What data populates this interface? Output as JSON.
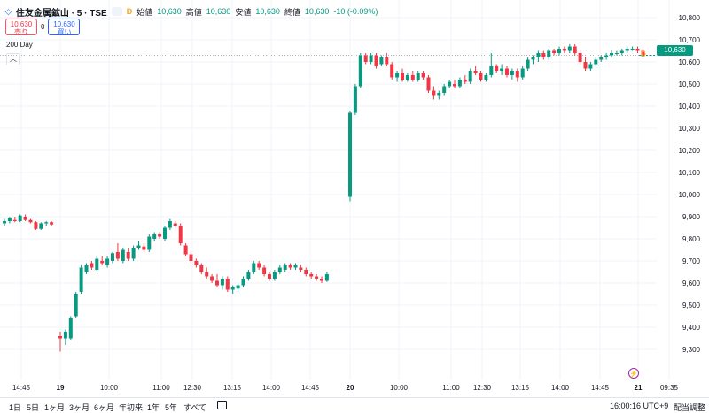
{
  "header": {
    "symbol": "住友金属鉱山 · 5 · TSE",
    "flag": "D",
    "open_label": "始値",
    "open_value": "10,630",
    "high_label": "高値",
    "high_value": "10,630",
    "low_label": "安値",
    "low_value": "10,630",
    "close_label": "終値",
    "close_value": "10,630",
    "change": "-10 (-0.09%)"
  },
  "trade": {
    "sell_price": "10,630",
    "sell_label": "売り",
    "spread": "0",
    "buy_price": "10,630",
    "buy_label": "買い"
  },
  "indicator": {
    "label": "200 Day"
  },
  "collapse_icon": "chevron-up-icon",
  "last_price_label": "10,630",
  "dividend_badge": "D",
  "bottom": {
    "ranges": [
      "1日",
      "5日",
      "1ヶ月",
      "3ヶ月",
      "6ヶ月",
      "年初来",
      "1年",
      "5年",
      "すべて"
    ],
    "clock": "16:00:16 UTC+9",
    "adjust": "配当調整"
  },
  "colors": {
    "up": "#089981",
    "down": "#f23645",
    "grid": "#f0f3fa",
    "ma": "#b2b5be",
    "last_price": "#089981"
  },
  "chart_data": {
    "type": "candlestick",
    "y_axis": {
      "min": 9200,
      "max": 10760,
      "ticks": [
        10800,
        10700,
        10600,
        10500,
        10400,
        10300,
        10200,
        10100,
        10000,
        9900,
        9800,
        9700,
        9600,
        9500,
        9400,
        9300
      ],
      "tick_labels": [
        "10,800",
        "10,700",
        "10,600",
        "10,500",
        "10,400",
        "10,300",
        "10,200",
        "10,100",
        "10,000",
        "9,900",
        "9,800",
        "9,700",
        "9,600",
        "9,500",
        "9,400",
        "9,300"
      ]
    },
    "x_axis": {
      "tick_labels": [
        "14:45",
        "19",
        "10:00",
        "11:00",
        "12:30",
        "13:15",
        "14:00",
        "14:45",
        "20",
        "10:00",
        "11:00",
        "12:30",
        "13:15",
        "14:00",
        "14:45",
        "21",
        "09:35"
      ]
    },
    "grid": true,
    "ma_200_level": 10630,
    "last_price": 10630,
    "candles": [
      {
        "o": 9870,
        "h": 9890,
        "l": 9860,
        "c": 9880
      },
      {
        "o": 9880,
        "h": 9900,
        "l": 9870,
        "c": 9895
      },
      {
        "o": 9885,
        "h": 9900,
        "l": 9875,
        "c": 9880
      },
      {
        "o": 9880,
        "h": 9910,
        "l": 9875,
        "c": 9905
      },
      {
        "o": 9900,
        "h": 9910,
        "l": 9880,
        "c": 9885
      },
      {
        "o": 9885,
        "h": 9890,
        "l": 9870,
        "c": 9875
      },
      {
        "o": 9875,
        "h": 9880,
        "l": 9840,
        "c": 9845
      },
      {
        "o": 9845,
        "h": 9875,
        "l": 9840,
        "c": 9870
      },
      {
        "o": 9870,
        "h": 9880,
        "l": 9860,
        "c": 9875
      },
      {
        "o": 9875,
        "h": 9880,
        "l": 9860,
        "c": 9865
      },
      {
        "o": 9360,
        "h": 9380,
        "l": 9290,
        "c": 9350
      },
      {
        "o": 9350,
        "h": 9390,
        "l": 9320,
        "c": 9380
      },
      {
        "o": 9350,
        "h": 9450,
        "l": 9340,
        "c": 9440
      },
      {
        "o": 9450,
        "h": 9560,
        "l": 9440,
        "c": 9550
      },
      {
        "o": 9560,
        "h": 9680,
        "l": 9550,
        "c": 9670
      },
      {
        "o": 9650,
        "h": 9690,
        "l": 9640,
        "c": 9680
      },
      {
        "o": 9690,
        "h": 9700,
        "l": 9660,
        "c": 9670
      },
      {
        "o": 9660,
        "h": 9720,
        "l": 9655,
        "c": 9710
      },
      {
        "o": 9700,
        "h": 9720,
        "l": 9680,
        "c": 9690
      },
      {
        "o": 9680,
        "h": 9720,
        "l": 9670,
        "c": 9710
      },
      {
        "o": 9700,
        "h": 9740,
        "l": 9690,
        "c": 9735
      },
      {
        "o": 9740,
        "h": 9780,
        "l": 9700,
        "c": 9710
      },
      {
        "o": 9700,
        "h": 9760,
        "l": 9690,
        "c": 9750
      },
      {
        "o": 9740,
        "h": 9760,
        "l": 9700,
        "c": 9710
      },
      {
        "o": 9710,
        "h": 9770,
        "l": 9700,
        "c": 9760
      },
      {
        "o": 9760,
        "h": 9790,
        "l": 9750,
        "c": 9770
      },
      {
        "o": 9765,
        "h": 9780,
        "l": 9740,
        "c": 9750
      },
      {
        "o": 9750,
        "h": 9820,
        "l": 9740,
        "c": 9810
      },
      {
        "o": 9800,
        "h": 9830,
        "l": 9790,
        "c": 9820
      },
      {
        "o": 9820,
        "h": 9830,
        "l": 9800,
        "c": 9810
      },
      {
        "o": 9800,
        "h": 9860,
        "l": 9790,
        "c": 9850
      },
      {
        "o": 9850,
        "h": 9890,
        "l": 9840,
        "c": 9880
      },
      {
        "o": 9870,
        "h": 9880,
        "l": 9850,
        "c": 9860
      },
      {
        "o": 9860,
        "h": 9870,
        "l": 9770,
        "c": 9780
      },
      {
        "o": 9770,
        "h": 9780,
        "l": 9720,
        "c": 9730
      },
      {
        "o": 9730,
        "h": 9740,
        "l": 9690,
        "c": 9700
      },
      {
        "o": 9700,
        "h": 9710,
        "l": 9670,
        "c": 9680
      },
      {
        "o": 9680,
        "h": 9690,
        "l": 9640,
        "c": 9650
      },
      {
        "o": 9650,
        "h": 9670,
        "l": 9620,
        "c": 9630
      },
      {
        "o": 9630,
        "h": 9640,
        "l": 9600,
        "c": 9610
      },
      {
        "o": 9610,
        "h": 9640,
        "l": 9580,
        "c": 9590
      },
      {
        "o": 9590,
        "h": 9630,
        "l": 9570,
        "c": 9620
      },
      {
        "o": 9620,
        "h": 9630,
        "l": 9560,
        "c": 9570
      },
      {
        "o": 9570,
        "h": 9590,
        "l": 9550,
        "c": 9580
      },
      {
        "o": 9575,
        "h": 9600,
        "l": 9560,
        "c": 9590
      },
      {
        "o": 9590,
        "h": 9630,
        "l": 9580,
        "c": 9620
      },
      {
        "o": 9620,
        "h": 9660,
        "l": 9610,
        "c": 9650
      },
      {
        "o": 9650,
        "h": 9700,
        "l": 9640,
        "c": 9690
      },
      {
        "o": 9690,
        "h": 9700,
        "l": 9660,
        "c": 9670
      },
      {
        "o": 9670,
        "h": 9680,
        "l": 9630,
        "c": 9640
      },
      {
        "o": 9640,
        "h": 9650,
        "l": 9610,
        "c": 9620
      },
      {
        "o": 9620,
        "h": 9660,
        "l": 9610,
        "c": 9650
      },
      {
        "o": 9650,
        "h": 9680,
        "l": 9640,
        "c": 9670
      },
      {
        "o": 9660,
        "h": 9690,
        "l": 9650,
        "c": 9680
      },
      {
        "o": 9680,
        "h": 9690,
        "l": 9660,
        "c": 9670
      },
      {
        "o": 9670,
        "h": 9690,
        "l": 9660,
        "c": 9680
      },
      {
        "o": 9670,
        "h": 9680,
        "l": 9650,
        "c": 9660
      },
      {
        "o": 9660,
        "h": 9670,
        "l": 9630,
        "c": 9640
      },
      {
        "o": 9640,
        "h": 9650,
        "l": 9620,
        "c": 9630
      },
      {
        "o": 9630,
        "h": 9640,
        "l": 9610,
        "c": 9620
      },
      {
        "o": 9620,
        "h": 9630,
        "l": 9600,
        "c": 9610
      },
      {
        "o": 9610,
        "h": 9650,
        "l": 9605,
        "c": 9640
      },
      {
        "o": 9990,
        "h": 10380,
        "l": 9970,
        "c": 10370
      },
      {
        "o": 10370,
        "h": 10500,
        "l": 10360,
        "c": 10490
      },
      {
        "o": 10490,
        "h": 10640,
        "l": 10480,
        "c": 10630
      },
      {
        "o": 10630,
        "h": 10640,
        "l": 10590,
        "c": 10600
      },
      {
        "o": 10600,
        "h": 10640,
        "l": 10590,
        "c": 10630
      },
      {
        "o": 10630,
        "h": 10640,
        "l": 10570,
        "c": 10580
      },
      {
        "o": 10590,
        "h": 10630,
        "l": 10580,
        "c": 10620
      },
      {
        "o": 10620,
        "h": 10640,
        "l": 10580,
        "c": 10590
      },
      {
        "o": 10590,
        "h": 10600,
        "l": 10520,
        "c": 10530
      },
      {
        "o": 10530,
        "h": 10560,
        "l": 10510,
        "c": 10550
      },
      {
        "o": 10550,
        "h": 10570,
        "l": 10510,
        "c": 10520
      },
      {
        "o": 10520,
        "h": 10550,
        "l": 10510,
        "c": 10540
      },
      {
        "o": 10540,
        "h": 10560,
        "l": 10510,
        "c": 10520
      },
      {
        "o": 10520,
        "h": 10560,
        "l": 10510,
        "c": 10550
      },
      {
        "o": 10550,
        "h": 10560,
        "l": 10520,
        "c": 10530
      },
      {
        "o": 10530,
        "h": 10540,
        "l": 10460,
        "c": 10470
      },
      {
        "o": 10470,
        "h": 10490,
        "l": 10430,
        "c": 10450
      },
      {
        "o": 10450,
        "h": 10470,
        "l": 10430,
        "c": 10460
      },
      {
        "o": 10460,
        "h": 10500,
        "l": 10450,
        "c": 10490
      },
      {
        "o": 10490,
        "h": 10520,
        "l": 10480,
        "c": 10510
      },
      {
        "o": 10500,
        "h": 10520,
        "l": 10480,
        "c": 10490
      },
      {
        "o": 10490,
        "h": 10530,
        "l": 10480,
        "c": 10520
      },
      {
        "o": 10520,
        "h": 10540,
        "l": 10500,
        "c": 10510
      },
      {
        "o": 10510,
        "h": 10570,
        "l": 10500,
        "c": 10560
      },
      {
        "o": 10560,
        "h": 10580,
        "l": 10540,
        "c": 10550
      },
      {
        "o": 10550,
        "h": 10560,
        "l": 10510,
        "c": 10520
      },
      {
        "o": 10520,
        "h": 10550,
        "l": 10510,
        "c": 10540
      },
      {
        "o": 10540,
        "h": 10640,
        "l": 10530,
        "c": 10580
      },
      {
        "o": 10580,
        "h": 10590,
        "l": 10550,
        "c": 10560
      },
      {
        "o": 10560,
        "h": 10590,
        "l": 10540,
        "c": 10570
      },
      {
        "o": 10570,
        "h": 10580,
        "l": 10530,
        "c": 10540
      },
      {
        "o": 10540,
        "h": 10570,
        "l": 10520,
        "c": 10560
      },
      {
        "o": 10560,
        "h": 10570,
        "l": 10510,
        "c": 10530
      },
      {
        "o": 10530,
        "h": 10580,
        "l": 10520,
        "c": 10570
      },
      {
        "o": 10570,
        "h": 10620,
        "l": 10560,
        "c": 10610
      },
      {
        "o": 10610,
        "h": 10630,
        "l": 10590,
        "c": 10620
      },
      {
        "o": 10620,
        "h": 10650,
        "l": 10600,
        "c": 10640
      },
      {
        "o": 10640,
        "h": 10650,
        "l": 10610,
        "c": 10620
      },
      {
        "o": 10620,
        "h": 10660,
        "l": 10610,
        "c": 10650
      },
      {
        "o": 10650,
        "h": 10660,
        "l": 10630,
        "c": 10640
      },
      {
        "o": 10640,
        "h": 10670,
        "l": 10630,
        "c": 10660
      },
      {
        "o": 10660,
        "h": 10670,
        "l": 10640,
        "c": 10650
      },
      {
        "o": 10650,
        "h": 10680,
        "l": 10640,
        "c": 10670
      },
      {
        "o": 10670,
        "h": 10680,
        "l": 10630,
        "c": 10640
      },
      {
        "o": 10640,
        "h": 10650,
        "l": 10590,
        "c": 10600
      },
      {
        "o": 10600,
        "h": 10620,
        "l": 10560,
        "c": 10570
      },
      {
        "o": 10570,
        "h": 10600,
        "l": 10560,
        "c": 10590
      },
      {
        "o": 10590,
        "h": 10620,
        "l": 10580,
        "c": 10610
      },
      {
        "o": 10610,
        "h": 10630,
        "l": 10600,
        "c": 10620
      },
      {
        "o": 10620,
        "h": 10640,
        "l": 10610,
        "c": 10630
      },
      {
        "o": 10630,
        "h": 10650,
        "l": 10620,
        "c": 10640
      },
      {
        "o": 10640,
        "h": 10650,
        "l": 10630,
        "c": 10640
      },
      {
        "o": 10640,
        "h": 10660,
        "l": 10630,
        "c": 10650
      },
      {
        "o": 10650,
        "h": 10670,
        "l": 10640,
        "c": 10660
      },
      {
        "o": 10660,
        "h": 10670,
        "l": 10650,
        "c": 10660
      },
      {
        "o": 10660,
        "h": 10670,
        "l": 10640,
        "c": 10650
      },
      {
        "o": 10650,
        "h": 10660,
        "l": 10620,
        "c": 10630
      }
    ]
  }
}
